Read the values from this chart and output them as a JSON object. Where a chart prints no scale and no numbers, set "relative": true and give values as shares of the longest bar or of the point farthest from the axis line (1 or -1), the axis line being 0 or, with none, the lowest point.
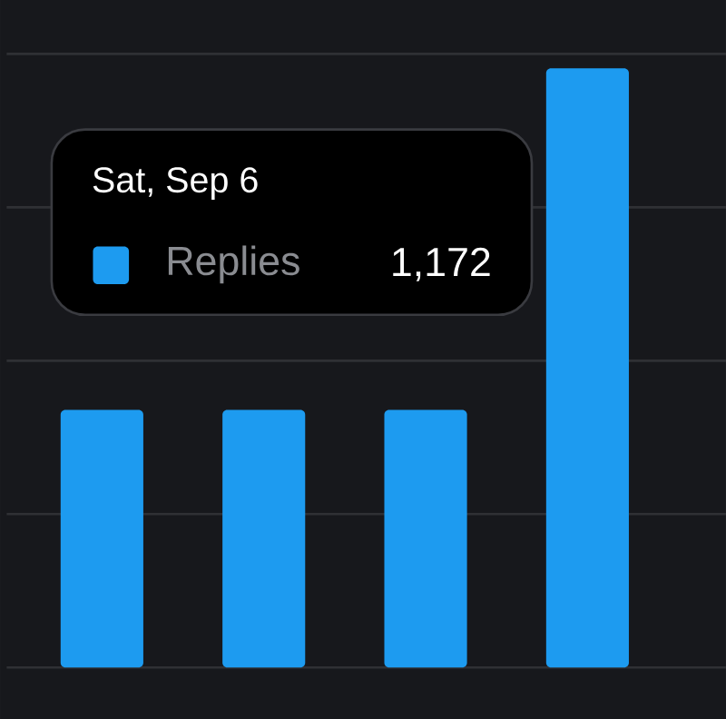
{
  "chart_data": {
    "type": "bar",
    "categories": [
      null,
      null,
      null,
      null
    ],
    "series": [
      {
        "name": "Replies",
        "color": "#1d9bf0",
        "values": [
          0.43,
          0.43,
          0.43,
          1
        ]
      }
    ],
    "relative": true,
    "grid": "y",
    "annotations": [
      "Sat, Sep 6",
      "1,172"
    ]
  }
}
